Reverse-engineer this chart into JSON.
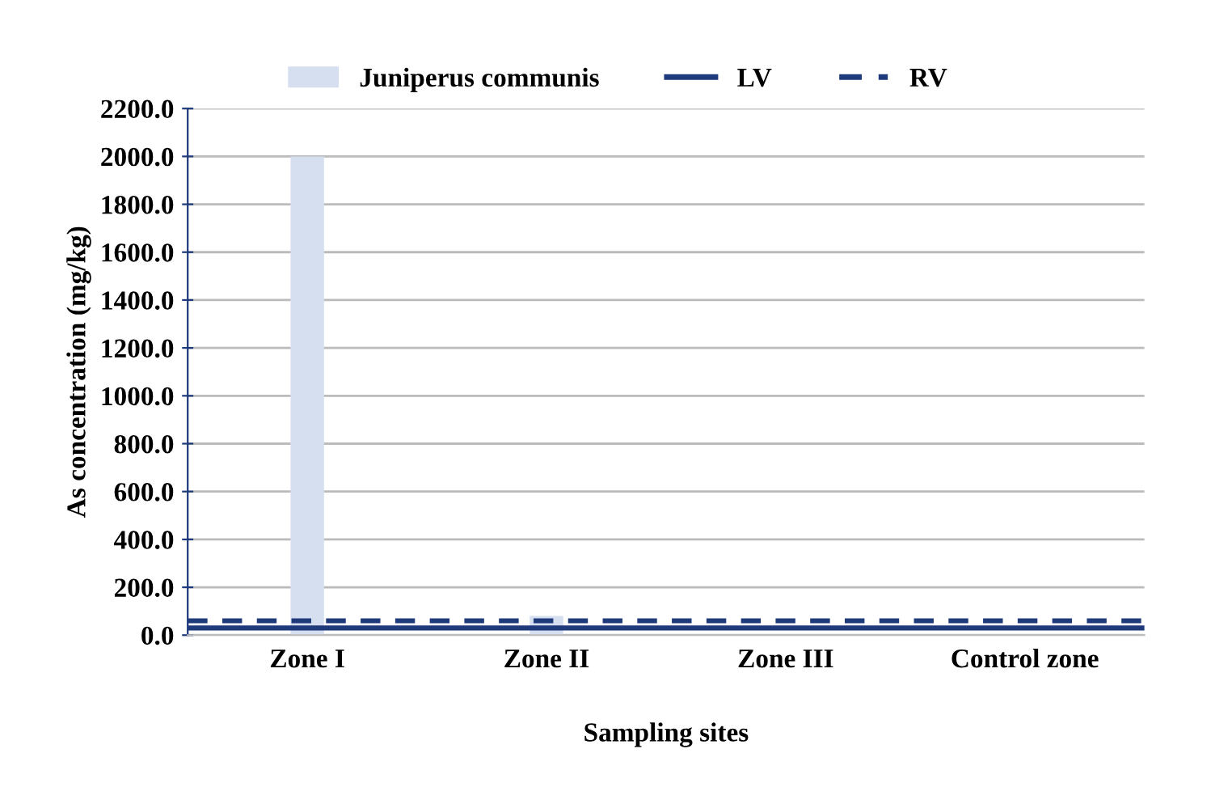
{
  "chart_data": {
    "type": "bar",
    "xlabel": "Sampling sites",
    "ylabel": "As concentration (mg/kg)",
    "categories": [
      "Zone I",
      "Zone II",
      "Zone III",
      "Control zone"
    ],
    "series": [
      {
        "name": "Juniperus communis",
        "color": "#d6dff0",
        "values": [
          2000,
          80,
          null,
          null
        ]
      }
    ],
    "ylim": [
      0,
      2200
    ],
    "yticks": [
      {
        "value": 0,
        "label": "0.0"
      },
      {
        "value": 200,
        "label": "200.0"
      },
      {
        "value": 400,
        "label": "400.0"
      },
      {
        "value": 600,
        "label": "600.0"
      },
      {
        "value": 800,
        "label": "800.0"
      },
      {
        "value": 1000,
        "label": "1000.0"
      },
      {
        "value": 1200,
        "label": "1200.0"
      },
      {
        "value": 1400,
        "label": "1400.0"
      },
      {
        "value": 1600,
        "label": "1600.0"
      },
      {
        "value": 1800,
        "label": "1800.0"
      },
      {
        "value": 2000,
        "label": "2000.0"
      },
      {
        "value": 2200,
        "label": "2200.0"
      }
    ],
    "ref_lines": [
      {
        "axis": "y",
        "value": 30,
        "label": "LV",
        "color": "#1f3a7a",
        "line_style": "solid"
      },
      {
        "axis": "y",
        "value": 60,
        "label": "RV",
        "color": "#1f3a7a",
        "line_style": "dashed"
      }
    ],
    "grid": "y",
    "legend": "top"
  }
}
